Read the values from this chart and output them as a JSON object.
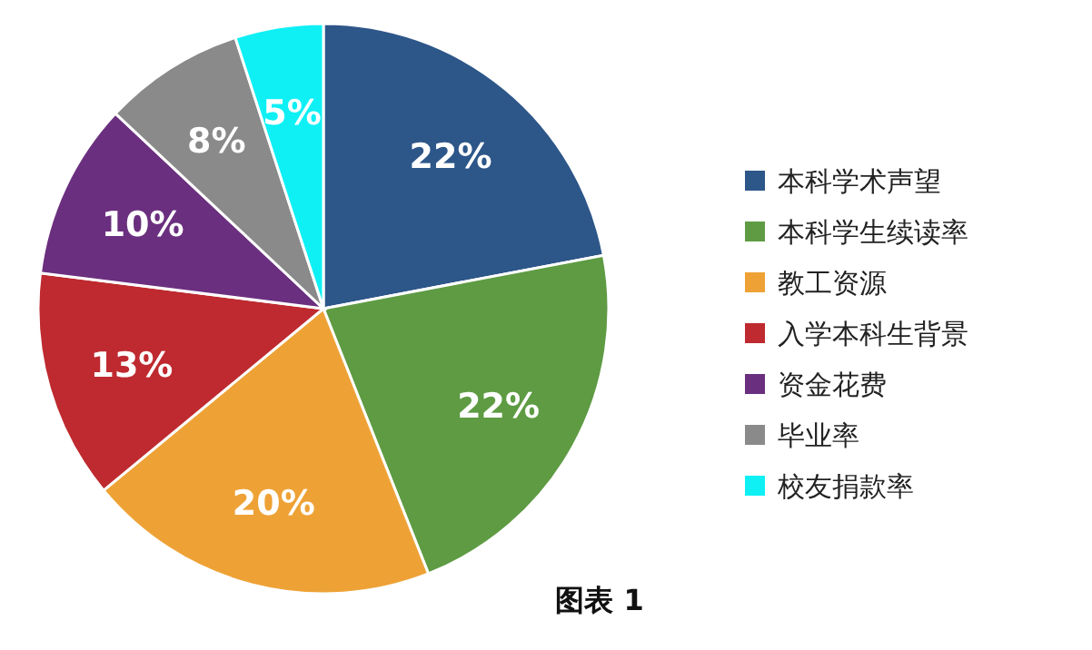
{
  "chart_data": {
    "type": "pie",
    "categories": [
      "本科学术声望",
      "本科学生续读率",
      "教工资源",
      "入学本科生背景",
      "资金花费",
      "毕业率",
      "校友捐款率"
    ],
    "values": [
      22,
      22,
      20,
      13,
      10,
      8,
      5
    ],
    "colors": [
      "#2d5689",
      "#5e9b43",
      "#eea236",
      "#be2a2f",
      "#6b2f7f",
      "#8a8a8a",
      "#0ff0f5"
    ],
    "value_labels": [
      "22%",
      "22%",
      "20%",
      "13%",
      "10%",
      "8%",
      "5%"
    ],
    "legend": "right",
    "annotations": [
      "图表 1"
    ]
  }
}
